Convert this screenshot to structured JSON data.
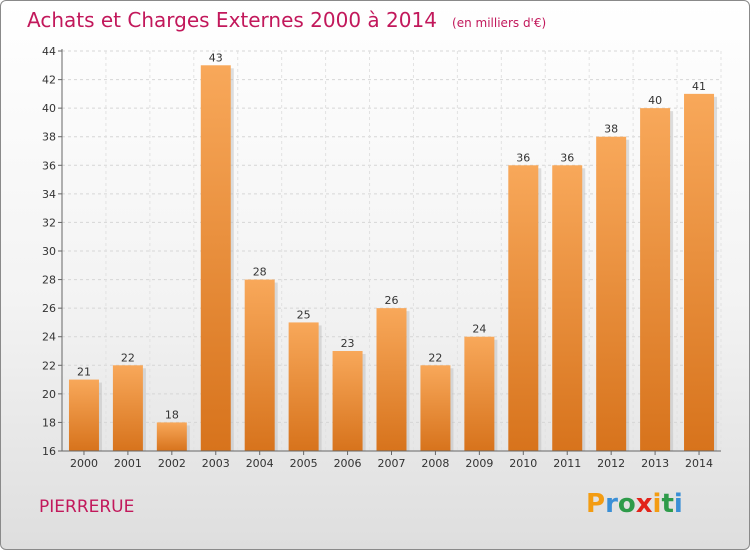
{
  "title": "Achats et Charges Externes 2000 à 2014",
  "unit": "(en milliers d'€)",
  "commune": "PIERRERUE",
  "logo": {
    "letters": [
      "P",
      "r",
      "o",
      "x",
      "i",
      "t",
      "i"
    ],
    "colors": [
      "#f39c12",
      "#3a8fd6",
      "#2e9b4a",
      "#e2231a",
      "#f39c12",
      "#2e9b4a",
      "#3a8fd6"
    ]
  },
  "colors": {
    "title": "#c2185b",
    "bar_top": "#f8a85a",
    "bar_bottom": "#d7731c"
  },
  "chart_data": {
    "type": "bar",
    "categories": [
      "2000",
      "2001",
      "2002",
      "2003",
      "2004",
      "2005",
      "2006",
      "2007",
      "2008",
      "2009",
      "2010",
      "2011",
      "2012",
      "2013",
      "2014"
    ],
    "values": [
      21,
      22,
      18,
      43,
      28,
      25,
      23,
      26,
      22,
      24,
      36,
      36,
      38,
      40,
      41
    ],
    "ylim": [
      16,
      44
    ],
    "yticks": [
      16,
      18,
      20,
      22,
      24,
      26,
      28,
      30,
      32,
      34,
      36,
      38,
      40,
      42,
      44
    ],
    "grid": true,
    "legend": "none"
  }
}
